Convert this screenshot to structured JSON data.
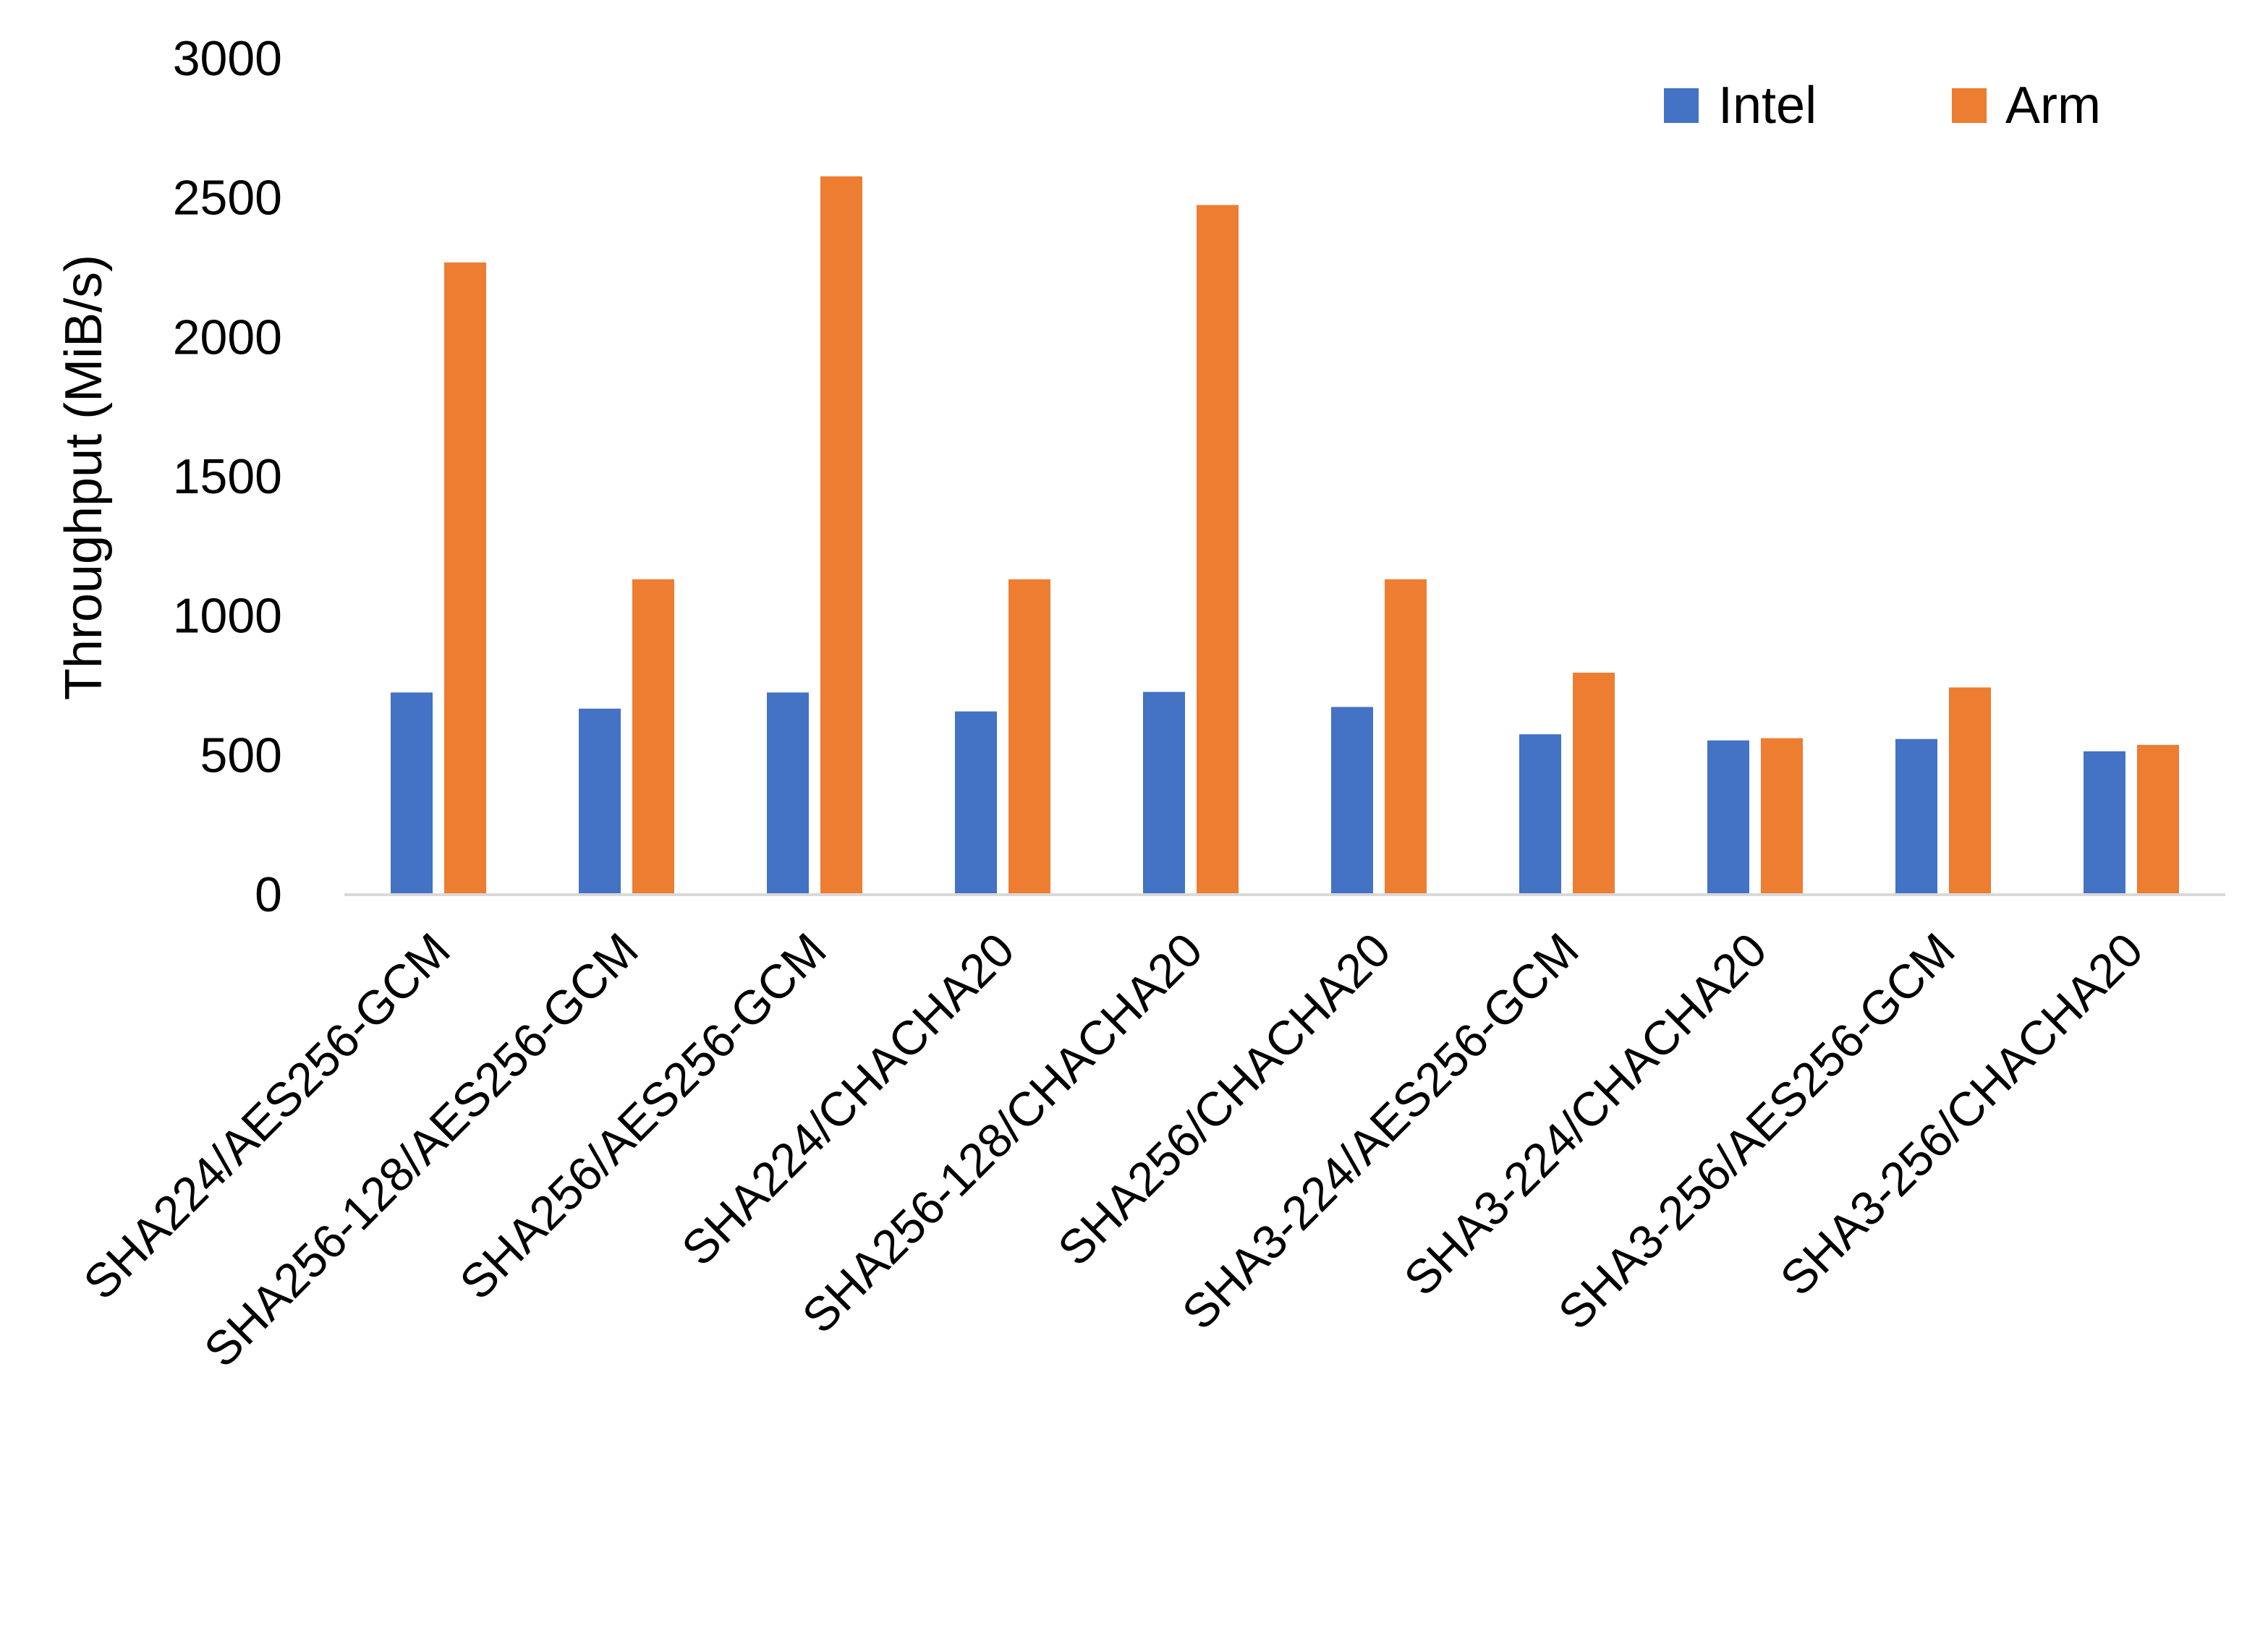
{
  "chart_data": {
    "type": "bar",
    "title": "",
    "xlabel": "",
    "ylabel": "Throughput (MiB/s)",
    "ylim": [
      0,
      3000
    ],
    "yticks": [
      0,
      500,
      1000,
      1500,
      2000,
      2500,
      3000
    ],
    "grid": false,
    "legend_position": "top-right",
    "categories": [
      "SHA224/AES256-GCM",
      "SHA256-128/AES256-GCM",
      "SHA256/AES256-GCM",
      "SHA224/CHACHA20",
      "SHA256-128/CHACHA20",
      "SHA256/CHACHA20",
      "SHA3-224/AES256-GCM",
      "SHA3-224/CHACHA20",
      "SHA3-256/AES256-GCM",
      "SHA3-256/CHACHA20"
    ],
    "series": [
      {
        "name": "Intel",
        "color": "#4472C4",
        "values": [
          723,
          665,
          723,
          655,
          725,
          671,
          573,
          551,
          556,
          512
        ]
      },
      {
        "name": "Arm",
        "color": "#ED7D31",
        "values": [
          2266,
          1129,
          2575,
          1129,
          2472,
          1129,
          794,
          559,
          741,
          535
        ]
      }
    ]
  }
}
